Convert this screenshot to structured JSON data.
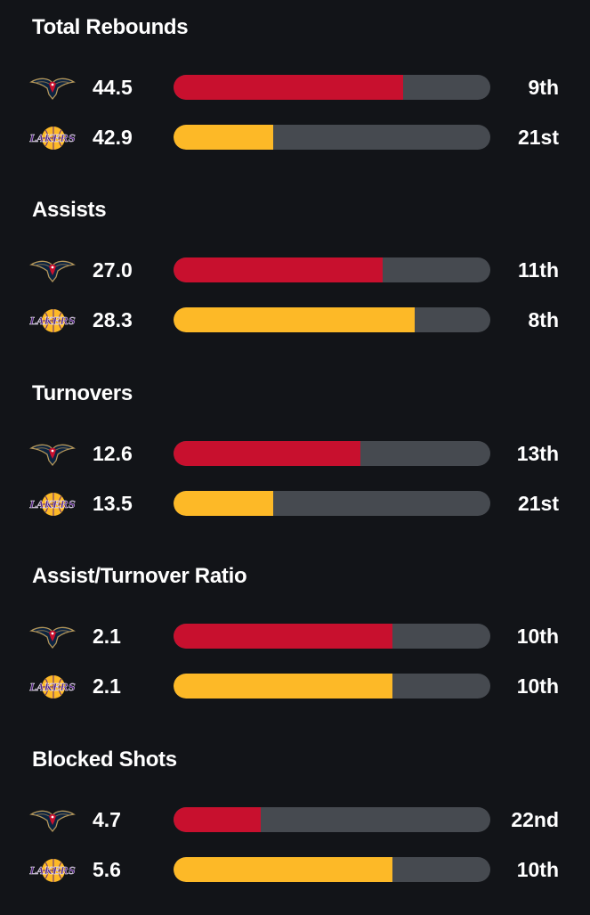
{
  "colors": {
    "background": "#121418",
    "track": "#464a50",
    "pelicans_bar": "#c8102e",
    "lakers_bar": "#fdb927"
  },
  "teams": {
    "pelicans": {
      "icon": "pelicans-logo-icon"
    },
    "lakers": {
      "icon": "lakers-logo-icon",
      "logo_text": "LAKERS"
    }
  },
  "sections": [
    {
      "title": "Total Rebounds",
      "rows": [
        {
          "team": "pelicans",
          "value": "44.5",
          "rank": "9th",
          "bar_fraction": 0.725
        },
        {
          "team": "lakers",
          "value": "42.9",
          "rank": "21st",
          "bar_fraction": 0.315
        }
      ]
    },
    {
      "title": "Assists",
      "rows": [
        {
          "team": "pelicans",
          "value": "27.0",
          "rank": "11th",
          "bar_fraction": 0.66
        },
        {
          "team": "lakers",
          "value": "28.3",
          "rank": "8th",
          "bar_fraction": 0.76
        }
      ]
    },
    {
      "title": "Turnovers",
      "rows": [
        {
          "team": "pelicans",
          "value": "12.6",
          "rank": "13th",
          "bar_fraction": 0.59
        },
        {
          "team": "lakers",
          "value": "13.5",
          "rank": "21st",
          "bar_fraction": 0.315
        }
      ]
    },
    {
      "title": "Assist/Turnover Ratio",
      "rows": [
        {
          "team": "pelicans",
          "value": "2.1",
          "rank": "10th",
          "bar_fraction": 0.69
        },
        {
          "team": "lakers",
          "value": "2.1",
          "rank": "10th",
          "bar_fraction": 0.69
        }
      ]
    },
    {
      "title": "Blocked Shots",
      "rows": [
        {
          "team": "pelicans",
          "value": "4.7",
          "rank": "22nd",
          "bar_fraction": 0.275
        },
        {
          "team": "lakers",
          "value": "5.6",
          "rank": "10th",
          "bar_fraction": 0.69
        }
      ]
    }
  ]
}
